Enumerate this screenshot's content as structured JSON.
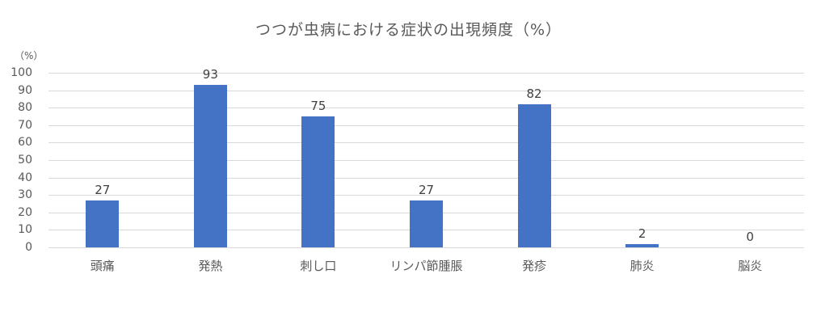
{
  "chart_data": {
    "type": "bar",
    "title": "つつが虫病における症状の出現頻度（%）",
    "ylabel": "（%）",
    "xlabel": "",
    "categories": [
      "頭痛",
      "発熱",
      "刺し口",
      "リンパ節腫脹",
      "発疹",
      "肺炎",
      "脳炎"
    ],
    "values": [
      27,
      93,
      75,
      27,
      82,
      2,
      0
    ],
    "ylim": [
      0,
      100
    ],
    "yticks": [
      0,
      10,
      20,
      30,
      40,
      50,
      60,
      70,
      80,
      90,
      100
    ],
    "grid": true,
    "legend": "none",
    "data_labels": true,
    "bar_color": "#4472C4"
  }
}
